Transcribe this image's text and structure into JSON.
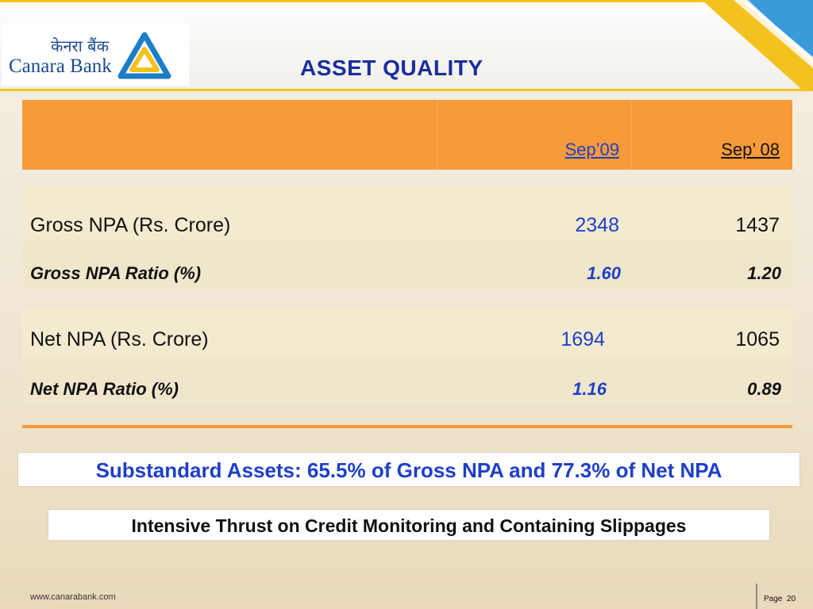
{
  "header": {
    "logo_hindi": "केनरा बैंक",
    "logo_english": "Canara Bank",
    "title": "ASSET QUALITY"
  },
  "table": {
    "columns": [
      "",
      "Sep’09",
      "Sep’ 08"
    ],
    "rows": [
      {
        "label": "Gross NPA (Rs. Crore)",
        "sep09": "2348",
        "sep08": "1437"
      },
      {
        "label": "Gross NPA Ratio (%)",
        "sep09": "1.60",
        "sep08": "1.20"
      },
      {
        "label": "Net NPA (Rs. Crore)",
        "sep09": "1694",
        "sep08": "1065"
      },
      {
        "label": "Net NPA Ratio  (%)",
        "sep09": "1.16",
        "sep08": "0.89"
      }
    ]
  },
  "callouts": {
    "substandard": "Substandard Assets: 65.5% of Gross NPA and 77.3% of Net NPA",
    "thrust": "Intensive Thrust on Credit Monitoring and Containing Slippages"
  },
  "footer": {
    "url": "www.canarabank.com",
    "page_label": "Page",
    "page_number": "20"
  },
  "colors": {
    "accent_orange": "#f99a3a",
    "title_blue": "#1a2f9c",
    "value_blue": "#1f3fc8",
    "brand_yellow": "#f4c21f"
  }
}
